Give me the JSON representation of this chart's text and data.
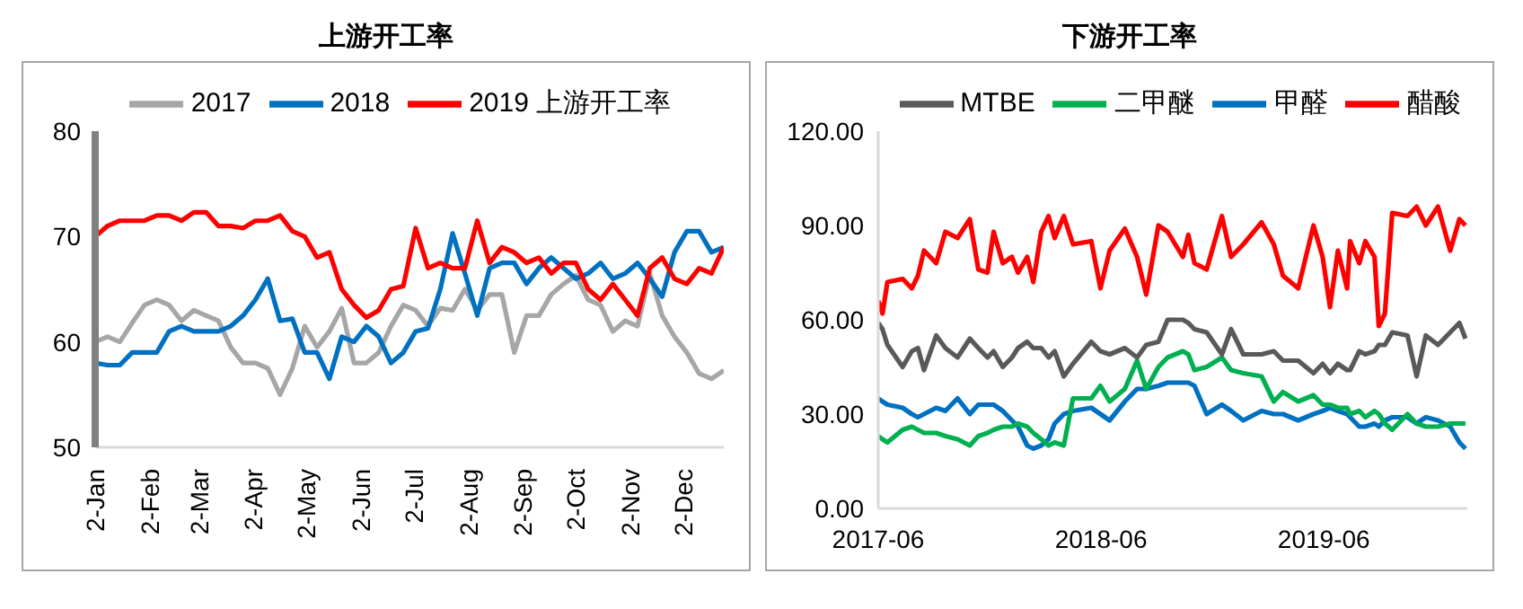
{
  "chart_data": [
    {
      "type": "line",
      "title": "上游开工率",
      "x": [
        "--01-02",
        "--01-09",
        "--01-16",
        "--01-23",
        "--01-30",
        "--02-06",
        "--02-13",
        "--02-20",
        "--02-27",
        "--03-06",
        "--03-13",
        "--03-20",
        "--03-27",
        "--04-03",
        "--04-10",
        "--04-17",
        "--04-24",
        "--05-01",
        "--05-08",
        "--05-15",
        "--05-22",
        "--05-29",
        "--06-05",
        "--06-12",
        "--06-19",
        "--06-26",
        "--07-03",
        "--07-10",
        "--07-17",
        "--07-24",
        "--07-31",
        "--08-07",
        "--08-14",
        "--08-21",
        "--08-28",
        "--09-04",
        "--09-11",
        "--09-18",
        "--09-25",
        "--10-02",
        "--10-09",
        "--10-16",
        "--10-23",
        "--10-30",
        "--11-06",
        "--11-13",
        "--11-20",
        "--11-27",
        "--12-04",
        "--12-11",
        "--12-18",
        "--12-25"
      ],
      "series": [
        {
          "name": "2017",
          "color": "#a6a6a6",
          "values": [
            60,
            60.5,
            60,
            61.8,
            63.5,
            64,
            63.5,
            62,
            63,
            62.5,
            62,
            59.5,
            58,
            58,
            57.5,
            55,
            57.5,
            61.5,
            59.5,
            61,
            63.2,
            58,
            58,
            59,
            61.5,
            63.5,
            63,
            61.5,
            63.2,
            63,
            65,
            63,
            64.5,
            64.5,
            59,
            62.5,
            62.5,
            64.5,
            65.5,
            66.3,
            64,
            63.5,
            61,
            62,
            61.5,
            66.5,
            62.5,
            60.5,
            59,
            57,
            56.5,
            57.3
          ]
        },
        {
          "name": "2018",
          "color": "#0070c0",
          "values": [
            58,
            57.8,
            57.8,
            59,
            59,
            59,
            61,
            61.5,
            61,
            61,
            61,
            61.5,
            62.5,
            64,
            66,
            62,
            62.2,
            59,
            59,
            56.5,
            60.5,
            60,
            61.5,
            60.5,
            58,
            59,
            61,
            61.3,
            65,
            70.3,
            66.5,
            62.5,
            67,
            67.5,
            67.5,
            65.5,
            67,
            68,
            67,
            66,
            66.5,
            67.5,
            66,
            66.5,
            67.5,
            66,
            64.3,
            68.5,
            70.5,
            70.5,
            68.5,
            69
          ]
        },
        {
          "name": "2019 上游开工率",
          "color": "#ff0000",
          "values": [
            70,
            71,
            71.5,
            71.5,
            71.5,
            72,
            72,
            71.5,
            72.3,
            72.3,
            71,
            71,
            70.8,
            71.5,
            71.5,
            72,
            70.5,
            70,
            68,
            68.5,
            65,
            63.5,
            62.3,
            63,
            65,
            65.3,
            70.8,
            67,
            67.5,
            67,
            67,
            71.5,
            67.5,
            69,
            68.5,
            67.5,
            68,
            66.5,
            67.5,
            67.5,
            65,
            64,
            65.5,
            64,
            62.5,
            67,
            68,
            66,
            65.5,
            67,
            66.5,
            69
          ]
        }
      ],
      "xlim": [
        "--01-02",
        "--12-25"
      ],
      "xticks": [
        {
          "value": "--01-02",
          "label": "2-Jan"
        },
        {
          "value": "--02-02",
          "label": "2-Feb"
        },
        {
          "value": "--03-02",
          "label": "2-Mar"
        },
        {
          "value": "--04-02",
          "label": "2-Apr"
        },
        {
          "value": "--05-02",
          "label": "2-May"
        },
        {
          "value": "--06-02",
          "label": "2-Jun"
        },
        {
          "value": "--07-02",
          "label": "2-Jul"
        },
        {
          "value": "--08-02",
          "label": "2-Aug"
        },
        {
          "value": "--09-02",
          "label": "2-Sep"
        },
        {
          "value": "--10-02",
          "label": "2-Oct"
        },
        {
          "value": "--11-02",
          "label": "2-Nov"
        },
        {
          "value": "--12-02",
          "label": "2-Dec"
        }
      ],
      "ylim": [
        50,
        80
      ],
      "yticks": [
        50,
        60,
        70,
        80
      ],
      "grid": false,
      "legend": "top",
      "marker": "none",
      "line_style": "solid"
    },
    {
      "type": "line",
      "title": "下游开工率",
      "x": [
        "2017-06-01",
        "2017-06-08",
        "2017-06-16",
        "2017-07-11",
        "2017-07-26",
        "2017-08-05",
        "2017-08-15",
        "2017-09-04",
        "2017-09-19",
        "2017-10-09",
        "2017-10-29",
        "2017-11-12",
        "2017-11-27",
        "2017-12-07",
        "2017-12-22",
        "2018-01-06",
        "2018-01-16",
        "2018-01-31",
        "2018-02-10",
        "2018-02-23",
        "2018-03-07",
        "2018-03-17",
        "2018-04-01",
        "2018-04-16",
        "2018-05-16",
        "2018-05-31",
        "2018-06-15",
        "2018-07-10",
        "2018-07-30",
        "2018-08-14",
        "2018-09-03",
        "2018-09-18",
        "2018-10-13",
        "2018-10-22",
        "2018-11-01",
        "2018-11-21",
        "2018-12-16",
        "2018-12-31",
        "2019-01-20",
        "2019-02-19",
        "2019-03-11",
        "2019-03-26",
        "2019-04-20",
        "2019-05-15",
        "2019-05-30",
        "2019-06-11",
        "2019-06-24",
        "2019-07-09",
        "2019-07-14",
        "2019-07-29",
        "2019-08-08",
        "2019-08-23",
        "2019-08-30",
        "2019-09-09",
        "2019-09-21",
        "2019-10-16",
        "2019-10-31",
        "2019-11-15",
        "2019-12-05",
        "2019-12-25",
        "2020-01-09",
        "2020-01-19"
      ],
      "series": [
        {
          "name": "甲醛",
          "color": "#0070c0",
          "values": [
            35,
            34,
            33,
            32,
            30,
            29,
            30,
            32,
            31,
            35,
            30,
            33,
            33,
            33,
            31,
            28,
            26,
            20,
            19,
            20,
            22,
            27,
            30,
            31,
            32,
            30,
            28,
            34,
            38,
            38,
            39,
            40,
            40,
            40,
            39,
            30,
            33,
            31,
            28,
            31,
            30,
            30,
            28,
            30,
            31,
            32,
            31,
            30,
            29,
            26,
            26,
            27,
            26,
            28,
            29,
            29,
            27,
            29,
            28,
            26,
            21,
            19
          ]
        },
        {
          "name": "二甲醚",
          "color": "#00b050",
          "values": [
            23,
            22,
            21,
            25,
            26,
            25,
            24,
            24,
            23,
            22,
            20,
            23,
            24,
            25,
            26,
            26,
            27,
            26,
            24,
            22,
            20,
            21,
            20,
            35,
            35,
            39,
            34,
            38,
            47,
            38,
            45,
            48,
            50,
            49,
            44,
            45,
            48,
            44,
            43,
            42,
            34,
            37,
            34,
            36,
            33,
            33,
            32,
            32,
            30,
            31,
            29,
            31,
            30,
            27,
            25,
            30,
            27,
            26,
            26,
            27,
            27,
            27
          ]
        },
        {
          "name": "醋酸",
          "color": "#ff0000",
          "values": [
            66,
            62,
            72,
            73,
            70,
            74,
            82,
            78,
            88,
            86,
            92,
            76,
            75,
            88,
            78,
            80,
            75,
            80,
            72,
            88,
            93,
            86,
            93,
            84,
            85,
            70,
            82,
            89,
            80,
            68,
            90,
            88,
            80,
            87,
            78,
            76,
            93,
            80,
            84,
            91,
            84,
            74,
            70,
            90,
            80,
            64,
            82,
            70,
            85,
            78,
            85,
            80,
            58,
            62,
            94,
            93,
            96,
            90,
            96,
            82,
            92,
            90
          ]
        },
        {
          "name": "MTBE",
          "color": "#595959",
          "values": [
            59,
            57,
            52,
            45,
            50,
            51,
            44,
            55,
            51,
            48,
            54,
            51,
            48,
            50,
            45,
            48,
            51,
            53,
            51,
            51,
            48,
            50,
            42,
            46,
            53,
            50,
            49,
            51,
            48,
            52,
            53,
            60,
            60,
            59,
            57,
            56,
            49,
            57,
            49,
            49,
            50,
            47,
            47,
            43,
            46,
            43,
            46,
            44,
            44,
            50,
            49,
            50,
            52,
            52,
            56,
            55,
            42,
            55,
            52,
            56,
            59,
            54
          ]
        }
      ],
      "xlim": [
        "2017-06-01",
        "2020-01-22"
      ],
      "xticks": [
        "2017-06",
        "2018-06",
        "2019-06"
      ],
      "ylim": [
        0,
        120
      ],
      "yticks": [
        {
          "value": 0,
          "label": "0.00"
        },
        {
          "value": 30,
          "label": "30.00"
        },
        {
          "value": 60,
          "label": "60.00"
        },
        {
          "value": 90,
          "label": "90.00"
        },
        {
          "value": 120,
          "label": "120.00"
        }
      ],
      "grid": false,
      "legend": "top",
      "marker": "none",
      "line_style": "solid"
    }
  ]
}
